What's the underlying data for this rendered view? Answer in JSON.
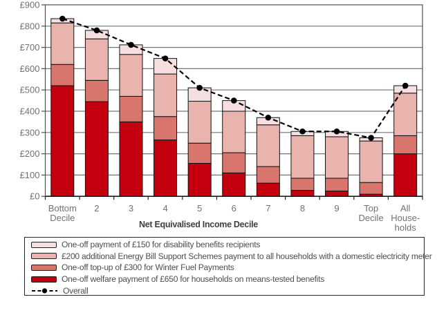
{
  "chart_data": {
    "type": "bar",
    "stacked": true,
    "title": "",
    "xlabel": "Net Equivalised Income Decile",
    "ylabel": "",
    "ylim": [
      0,
      900
    ],
    "ytick_step": 100,
    "ytick_prefix": "£",
    "grid": true,
    "legend_position": "bottom boxed",
    "categories": [
      [
        "Bottom",
        "Decile"
      ],
      [
        "2"
      ],
      [
        "3"
      ],
      [
        "4"
      ],
      [
        "5"
      ],
      [
        "6"
      ],
      [
        "7"
      ],
      [
        "8"
      ],
      [
        "9"
      ],
      [
        "Top",
        "Decile"
      ],
      [
        "All",
        "House-",
        "holds"
      ]
    ],
    "series": [
      {
        "name": "One-off welfare payment of £650 for households on means-tested benefits",
        "color": "#c4000e",
        "values": [
          520,
          445,
          350,
          265,
          155,
          110,
          62,
          28,
          25,
          10,
          200
        ]
      },
      {
        "name": "One-off  top-up of £300 for Winter Fuel Payments",
        "color": "#d8766e",
        "values": [
          100,
          100,
          120,
          110,
          95,
          95,
          78,
          57,
          60,
          55,
          85
        ]
      },
      {
        "name": "£200 additional Energy Bill Support Schemes payment to all households with a domestic electricity meter",
        "color": "#eab4ae",
        "values": [
          195,
          195,
          197,
          200,
          197,
          195,
          196,
          200,
          195,
          195,
          200
        ]
      },
      {
        "name": "One-off payment of £150 for  disability benefits  recipients",
        "color": "#f5dfe0",
        "values": [
          20,
          40,
          45,
          73,
          63,
          50,
          34,
          20,
          25,
          15,
          35
        ]
      }
    ],
    "overall": {
      "name": "Overall",
      "color": "#000000",
      "line_style": "dashed",
      "marker": "filled-circle",
      "values": [
        835,
        780,
        712,
        648,
        510,
        450,
        370,
        305,
        305,
        275,
        520
      ]
    }
  },
  "palette": {
    "background": "#ffffff",
    "grid_line": "#737373",
    "plot_border": "#4f4f4f",
    "axis_line": "#1a1a1a",
    "bar_border": "#0f0f0f",
    "tick_label": "#6e7173",
    "axis_title": "#3d4043",
    "legend_text": "#4b4e50",
    "legend_border": "#262626"
  }
}
